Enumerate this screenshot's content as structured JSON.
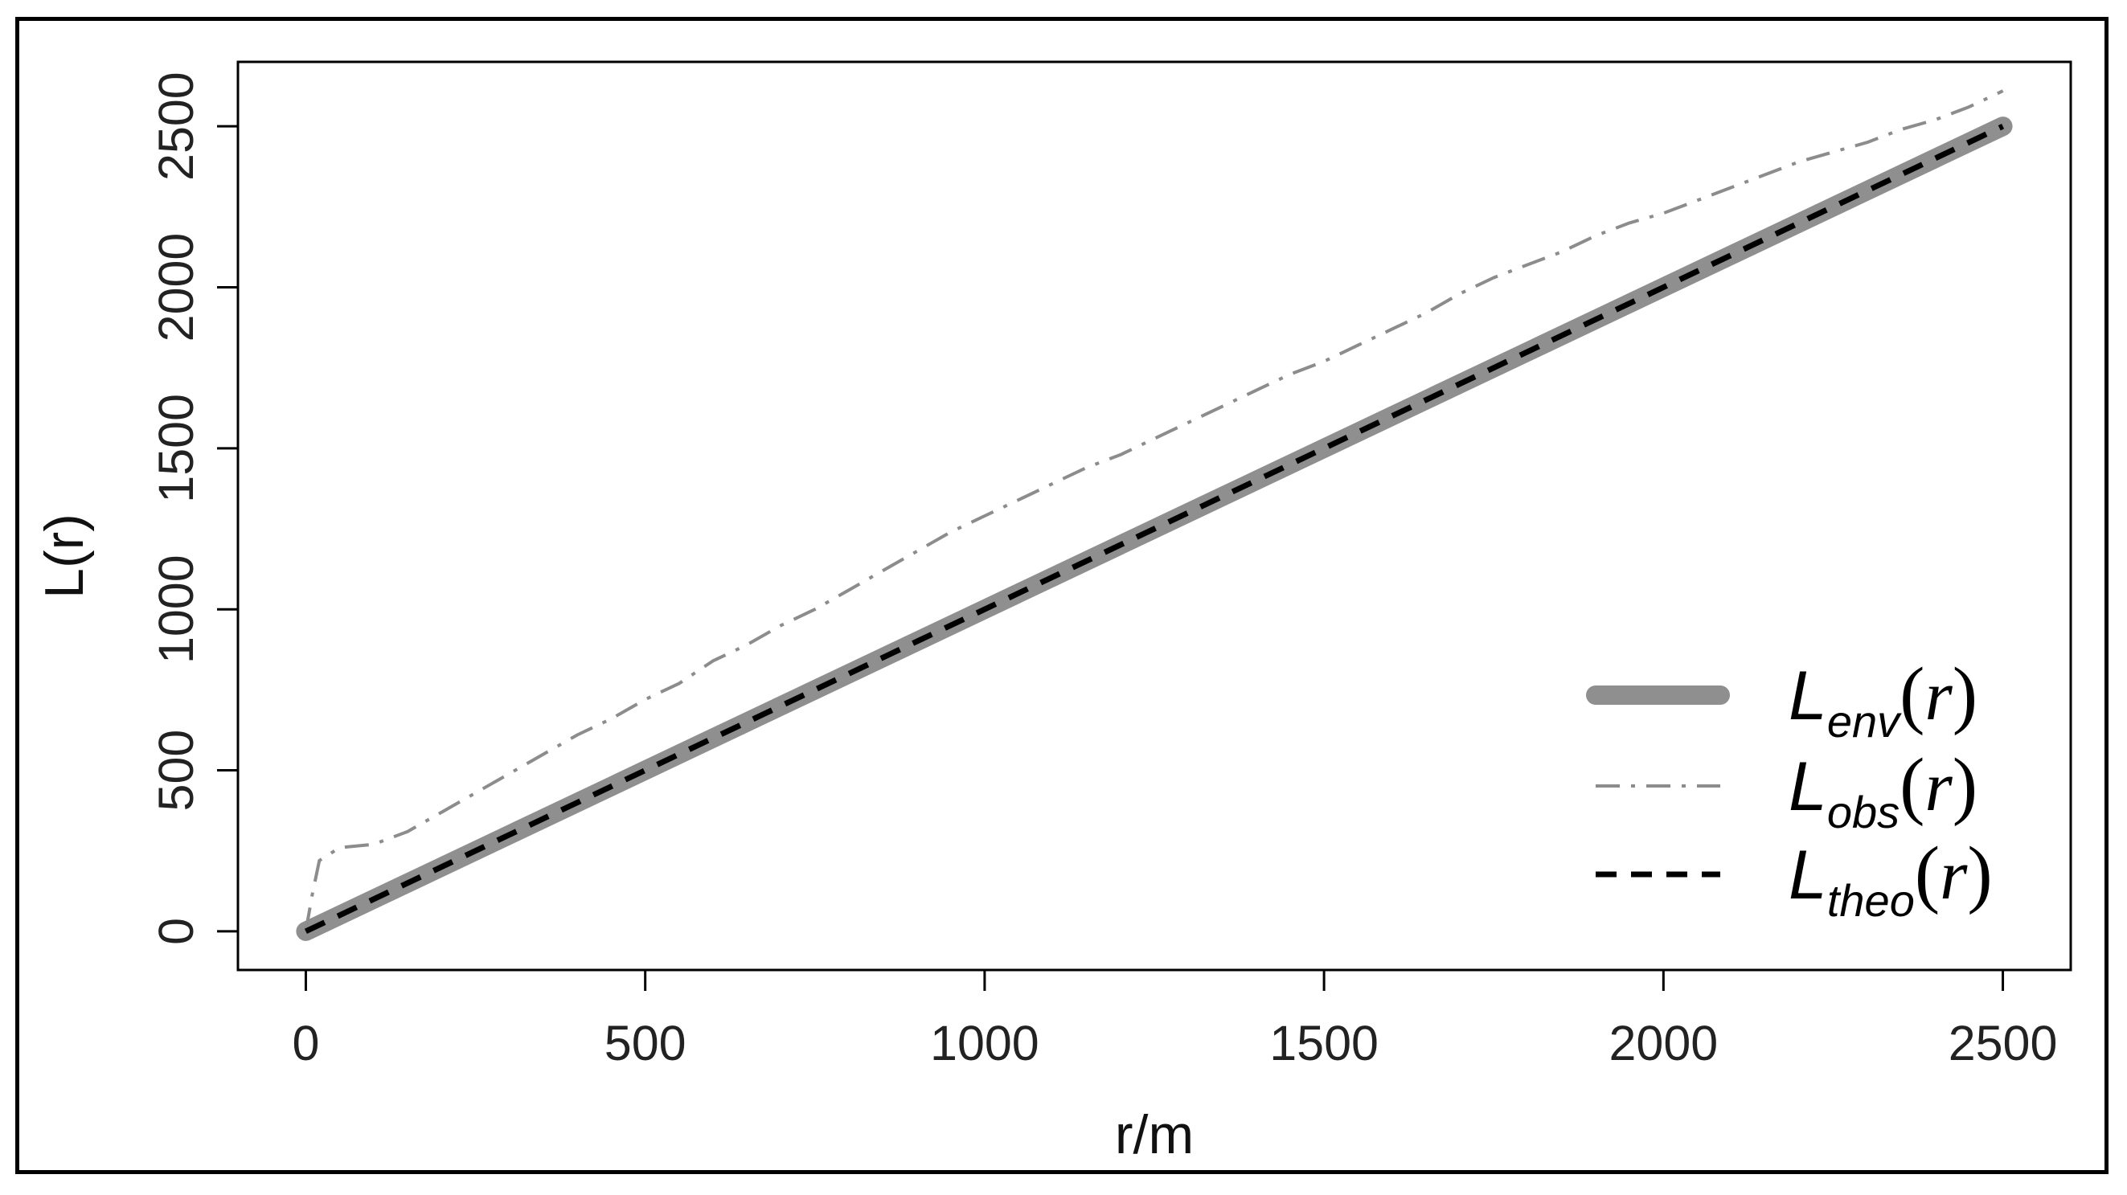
{
  "chart_data": {
    "type": "line",
    "title": "",
    "xlabel": "r/m",
    "ylabel": "L(r)",
    "xlim": [
      -100,
      2600
    ],
    "ylim": [
      -120,
      2700
    ],
    "x_ticks": [
      0,
      500,
      1000,
      1500,
      2000,
      2500
    ],
    "x_tick_labels": [
      "0",
      "500",
      "1000",
      "1500",
      "2000",
      "2500"
    ],
    "y_ticks": [
      0,
      500,
      1000,
      1500,
      2000,
      2500
    ],
    "y_tick_labels": [
      "0",
      "500",
      "1000",
      "1500",
      "2000",
      "2500"
    ],
    "grid": false,
    "legend_position": "bottom-right",
    "series": [
      {
        "key": "env",
        "legend_main": "L",
        "legend_sub": "env",
        "legend_arg": "r",
        "style": "thick-solid",
        "color": "#8f8f8f",
        "x": [
          0,
          2500
        ],
        "y": [
          0,
          2500
        ]
      },
      {
        "key": "obs",
        "legend_main": "L",
        "legend_sub": "obs",
        "legend_arg": "r",
        "style": "dash-dot",
        "color": "#8c8c8c",
        "x": [
          0,
          10,
          20,
          50,
          100,
          150,
          200,
          250,
          300,
          350,
          400,
          450,
          500,
          550,
          600,
          650,
          700,
          750,
          800,
          850,
          900,
          950,
          1000,
          1050,
          1100,
          1150,
          1200,
          1250,
          1300,
          1350,
          1400,
          1450,
          1500,
          1550,
          1600,
          1650,
          1700,
          1750,
          1800,
          1850,
          1900,
          1950,
          2000,
          2050,
          2100,
          2150,
          2200,
          2250,
          2300,
          2350,
          2400,
          2450,
          2500
        ],
        "y": [
          0,
          120,
          220,
          260,
          270,
          310,
          370,
          430,
          490,
          550,
          610,
          660,
          720,
          770,
          840,
          890,
          950,
          1000,
          1060,
          1120,
          1180,
          1240,
          1290,
          1340,
          1390,
          1440,
          1480,
          1530,
          1580,
          1630,
          1680,
          1730,
          1770,
          1820,
          1870,
          1920,
          1980,
          2030,
          2070,
          2110,
          2160,
          2200,
          2230,
          2270,
          2310,
          2350,
          2390,
          2420,
          2450,
          2490,
          2520,
          2560,
          2610
        ]
      },
      {
        "key": "theo",
        "legend_main": "L",
        "legend_sub": "theo",
        "legend_arg": "r",
        "style": "dashed",
        "color": "#000000",
        "x": [
          0,
          2500
        ],
        "y": [
          0,
          2500
        ]
      }
    ]
  }
}
